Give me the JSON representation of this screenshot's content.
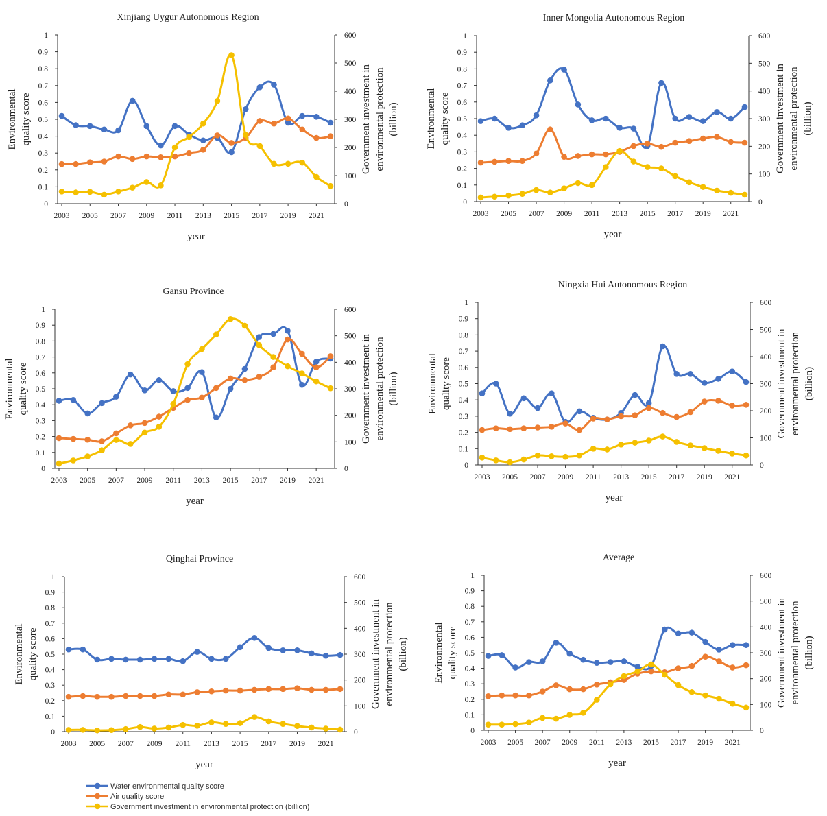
{
  "chart_data": [
    {
      "type": "line",
      "title": "Xinjiang Uygur Autonomous Region",
      "xlabel": "year",
      "ylabel": [
        "Environmental",
        "quality score"
      ],
      "y2label": [
        "Government investment in",
        "environmental protection",
        "(billion)"
      ],
      "x": [
        2003,
        2004,
        2005,
        2006,
        2007,
        2008,
        2009,
        2010,
        2011,
        2012,
        2013,
        2014,
        2015,
        2016,
        2017,
        2018,
        2019,
        2020,
        2021,
        2022
      ],
      "xticks": [
        "2003",
        "2005",
        "2007",
        "2009",
        "2011",
        "2013",
        "2015",
        "2017",
        "2019",
        "2021"
      ],
      "ylim": [
        0,
        1
      ],
      "yticks": [
        "0",
        "0.1",
        "0.2",
        "0.3",
        "0.4",
        "0.5",
        "0.6",
        "0.7",
        "0.8",
        "0.9",
        "1"
      ],
      "y2lim": [
        0,
        600
      ],
      "y2ticks": [
        "0",
        "100",
        "200",
        "300",
        "400",
        "500",
        "600"
      ],
      "series": [
        {
          "name": "Water environmental quality score",
          "axis": "left",
          "color": "#4472c4",
          "values": [
            0.52,
            0.465,
            0.46,
            0.44,
            0.435,
            0.61,
            0.46,
            0.345,
            0.46,
            0.41,
            0.375,
            0.39,
            0.305,
            0.56,
            0.69,
            0.705,
            0.48,
            0.52,
            0.515,
            0.48
          ]
        },
        {
          "name": "Air quality score",
          "axis": "left",
          "color": "#ed7d31",
          "values": [
            0.235,
            0.235,
            0.245,
            0.25,
            0.28,
            0.265,
            0.28,
            0.275,
            0.28,
            0.3,
            0.32,
            0.405,
            0.36,
            0.39,
            0.49,
            0.475,
            0.505,
            0.44,
            0.39,
            0.4
          ]
        },
        {
          "name": "Government investment in environmental protection (billion)",
          "axis": "right",
          "color": "#f5c000",
          "values": [
            43,
            40,
            42,
            32,
            43,
            57,
            77,
            65,
            200,
            237,
            285,
            365,
            528,
            245,
            205,
            142,
            142,
            146,
            95,
            63
          ]
        }
      ]
    },
    {
      "type": "line",
      "title": "Inner Mongolia Autonomous Region",
      "xlabel": "year",
      "ylabel": [
        "Environmental",
        "quality score"
      ],
      "y2label": [
        "Government investment in",
        "environmental protection",
        "(billion)"
      ],
      "x": [
        2003,
        2004,
        2005,
        2006,
        2007,
        2008,
        2009,
        2010,
        2011,
        2012,
        2013,
        2014,
        2015,
        2016,
        2017,
        2018,
        2019,
        2020,
        2021,
        2022
      ],
      "xticks": [
        "2003",
        "2005",
        "2007",
        "2009",
        "2011",
        "2013",
        "2015",
        "2017",
        "2019",
        "2021"
      ],
      "ylim": [
        0,
        1
      ],
      "yticks": [
        "0",
        "0.1",
        "0.2",
        "0.3",
        "0.4",
        "0.5",
        "0.6",
        "0.7",
        "0.8",
        "0.9",
        "1"
      ],
      "y2lim": [
        0,
        600
      ],
      "y2ticks": [
        "0",
        "100",
        "200",
        "300",
        "400",
        "500",
        "600"
      ],
      "series": [
        {
          "name": "Water environmental quality score",
          "axis": "left",
          "color": "#4472c4",
          "values": [
            0.485,
            0.5,
            0.445,
            0.46,
            0.52,
            0.73,
            0.795,
            0.585,
            0.49,
            0.5,
            0.445,
            0.44,
            0.335,
            0.715,
            0.5,
            0.51,
            0.485,
            0.54,
            0.5,
            0.57
          ]
        },
        {
          "name": "Air quality score",
          "axis": "left",
          "color": "#ed7d31",
          "values": [
            0.235,
            0.24,
            0.245,
            0.245,
            0.29,
            0.435,
            0.27,
            0.275,
            0.285,
            0.285,
            0.3,
            0.335,
            0.35,
            0.33,
            0.355,
            0.365,
            0.38,
            0.39,
            0.36,
            0.355
          ]
        },
        {
          "name": "Government investment in environmental protection (billion)",
          "axis": "right",
          "color": "#f5c000",
          "values": [
            15,
            18,
            22,
            28,
            42,
            33,
            48,
            67,
            60,
            125,
            183,
            145,
            125,
            120,
            92,
            70,
            53,
            40,
            32,
            25
          ]
        }
      ]
    },
    {
      "type": "line",
      "title": "Gansu Province",
      "xlabel": "year",
      "ylabel": [
        "Environmental",
        "quality score"
      ],
      "y2label": [
        "Government investment in",
        "environmental protection",
        "(billion)"
      ],
      "x": [
        2003,
        2004,
        2005,
        2006,
        2007,
        2008,
        2009,
        2010,
        2011,
        2012,
        2013,
        2014,
        2015,
        2016,
        2017,
        2018,
        2019,
        2020,
        2021,
        2022
      ],
      "xticks": [
        "2003",
        "2005",
        "2007",
        "2009",
        "2011",
        "2013",
        "2015",
        "2017",
        "2019",
        "2021"
      ],
      "ylim": [
        0,
        1
      ],
      "yticks": [
        "0",
        "0.1",
        "0.2",
        "0.3",
        "0.4",
        "0.5",
        "0.6",
        "0.7",
        "0.8",
        "0.9",
        "1"
      ],
      "y2lim": [
        0,
        600
      ],
      "y2ticks": [
        "0",
        "100",
        "200",
        "300",
        "400",
        "500",
        "600"
      ],
      "series": [
        {
          "name": "Water environmental quality score",
          "axis": "left",
          "color": "#4472c4",
          "values": [
            0.425,
            0.43,
            0.345,
            0.41,
            0.45,
            0.59,
            0.49,
            0.555,
            0.485,
            0.505,
            0.605,
            0.32,
            0.5,
            0.625,
            0.825,
            0.845,
            0.865,
            0.525,
            0.67,
            0.69
          ]
        },
        {
          "name": "Air quality score",
          "axis": "left",
          "color": "#ed7d31",
          "values": [
            0.19,
            0.185,
            0.18,
            0.17,
            0.22,
            0.27,
            0.285,
            0.325,
            0.38,
            0.43,
            0.445,
            0.505,
            0.565,
            0.555,
            0.575,
            0.635,
            0.81,
            0.72,
            0.635,
            0.705
          ]
        },
        {
          "name": "Government investment in environmental protection (billion)",
          "axis": "right",
          "color": "#f5c000",
          "values": [
            18,
            30,
            45,
            68,
            107,
            92,
            135,
            157,
            243,
            393,
            450,
            505,
            563,
            538,
            465,
            420,
            385,
            358,
            328,
            302
          ]
        }
      ]
    },
    {
      "type": "line",
      "title": "Ningxia Hui Autonomous Region",
      "xlabel": "year",
      "ylabel": [
        "Environmental",
        "quality score"
      ],
      "y2label": [
        "Government investment in",
        "environmental protection",
        "(billion)"
      ],
      "x": [
        2003,
        2004,
        2005,
        2006,
        2007,
        2008,
        2009,
        2010,
        2011,
        2012,
        2013,
        2014,
        2015,
        2016,
        2017,
        2018,
        2019,
        2020,
        2021,
        2022
      ],
      "xticks": [
        "2003",
        "2005",
        "2007",
        "2009",
        "2011",
        "2013",
        "2015",
        "2017",
        "2019",
        "2021"
      ],
      "ylim": [
        0,
        1
      ],
      "yticks": [
        "0",
        "0.1",
        "0.2",
        "0.3",
        "0.4",
        "0.5",
        "0.6",
        "0.7",
        "0.8",
        "0.9",
        "1"
      ],
      "y2lim": [
        0,
        600
      ],
      "y2ticks": [
        "0",
        "100",
        "200",
        "300",
        "400",
        "500",
        "600"
      ],
      "series": [
        {
          "name": "Water environmental quality score",
          "axis": "left",
          "color": "#4472c4",
          "values": [
            0.44,
            0.5,
            0.315,
            0.41,
            0.35,
            0.44,
            0.265,
            0.33,
            0.29,
            0.28,
            0.32,
            0.43,
            0.38,
            0.73,
            0.56,
            0.56,
            0.505,
            0.53,
            0.575,
            0.51
          ]
        },
        {
          "name": "Air quality score",
          "axis": "left",
          "color": "#ed7d31",
          "values": [
            0.215,
            0.225,
            0.22,
            0.225,
            0.23,
            0.235,
            0.255,
            0.215,
            0.285,
            0.28,
            0.3,
            0.305,
            0.35,
            0.32,
            0.295,
            0.325,
            0.39,
            0.395,
            0.365,
            0.37
          ]
        },
        {
          "name": "Government investment in environmental protection (billion)",
          "axis": "right",
          "color": "#f5c000",
          "values": [
            27,
            17,
            10,
            20,
            35,
            32,
            30,
            35,
            60,
            57,
            75,
            82,
            90,
            105,
            85,
            72,
            62,
            52,
            42,
            35
          ]
        }
      ]
    },
    {
      "type": "line",
      "title": "Qinghai Province",
      "xlabel": "year",
      "ylabel": [
        "Environmental",
        "quality score"
      ],
      "y2label": [
        "Government investment in",
        "environmental protection",
        "(billion)"
      ],
      "x": [
        2003,
        2004,
        2005,
        2006,
        2007,
        2008,
        2009,
        2010,
        2011,
        2012,
        2013,
        2014,
        2015,
        2016,
        2017,
        2018,
        2019,
        2020,
        2021,
        2022
      ],
      "xticks": [
        "2003",
        "2005",
        "2007",
        "2009",
        "2011",
        "2013",
        "2015",
        "2017",
        "2019",
        "2021"
      ],
      "ylim": [
        0,
        1
      ],
      "yticks": [
        "0",
        "0.1",
        "0.2",
        "0.3",
        "0.4",
        "0.5",
        "0.6",
        "0.7",
        "0.8",
        "0.9",
        "1"
      ],
      "y2lim": [
        0,
        600
      ],
      "y2ticks": [
        "0",
        "100",
        "200",
        "300",
        "400",
        "500",
        "600"
      ],
      "series": [
        {
          "name": "Water environmental quality score",
          "axis": "left",
          "color": "#4472c4",
          "values": [
            0.53,
            0.53,
            0.465,
            0.47,
            0.465,
            0.465,
            0.47,
            0.47,
            0.455,
            0.515,
            0.47,
            0.47,
            0.545,
            0.605,
            0.54,
            0.525,
            0.525,
            0.505,
            0.49,
            0.495
          ]
        },
        {
          "name": "Air quality score",
          "axis": "left",
          "color": "#ed7d31",
          "values": [
            0.225,
            0.23,
            0.225,
            0.225,
            0.23,
            0.23,
            0.23,
            0.24,
            0.24,
            0.255,
            0.26,
            0.265,
            0.265,
            0.27,
            0.275,
            0.275,
            0.28,
            0.27,
            0.27,
            0.275
          ]
        },
        {
          "name": "Government investment in environmental protection (billion)",
          "axis": "right",
          "color": "#f5c000",
          "values": [
            7,
            7,
            5,
            6,
            10,
            18,
            12,
            16,
            26,
            23,
            36,
            30,
            33,
            57,
            40,
            30,
            22,
            16,
            12,
            8
          ]
        }
      ]
    },
    {
      "type": "line",
      "title": "Average",
      "xlabel": "year",
      "ylabel": [
        "Environmental",
        "quality score"
      ],
      "y2label": [
        "Government investment in",
        "environmental protection",
        "(billion)"
      ],
      "x": [
        2003,
        2004,
        2005,
        2006,
        2007,
        2008,
        2009,
        2010,
        2011,
        2012,
        2013,
        2014,
        2015,
        2016,
        2017,
        2018,
        2019,
        2020,
        2021,
        2022
      ],
      "xticks": [
        "2003",
        "2005",
        "2007",
        "2009",
        "2011",
        "2013",
        "2015",
        "2017",
        "2019",
        "2021"
      ],
      "ylim": [
        0,
        1
      ],
      "yticks": [
        "0",
        "0.1",
        "0.2",
        "0.3",
        "0.4",
        "0.5",
        "0.6",
        "0.7",
        "0.8",
        "0.9",
        "1"
      ],
      "y2lim": [
        0,
        600
      ],
      "y2ticks": [
        "0",
        "100",
        "200",
        "300",
        "400",
        "500",
        "600"
      ],
      "series": [
        {
          "name": "Water environmental quality score",
          "axis": "left",
          "color": "#4472c4",
          "values": [
            0.48,
            0.485,
            0.405,
            0.44,
            0.445,
            0.565,
            0.495,
            0.455,
            0.435,
            0.44,
            0.445,
            0.41,
            0.415,
            0.65,
            0.625,
            0.63,
            0.57,
            0.52,
            0.55,
            0.55
          ]
        },
        {
          "name": "Air quality score",
          "axis": "left",
          "color": "#ed7d31",
          "values": [
            0.22,
            0.225,
            0.225,
            0.225,
            0.25,
            0.29,
            0.265,
            0.265,
            0.295,
            0.31,
            0.325,
            0.365,
            0.38,
            0.375,
            0.4,
            0.415,
            0.475,
            0.445,
            0.405,
            0.42
          ]
        },
        {
          "name": "Government investment in environmental protection (billion)",
          "axis": "right",
          "color": "#f5c000",
          "values": [
            22,
            22,
            24,
            30,
            48,
            45,
            60,
            68,
            118,
            178,
            210,
            228,
            255,
            215,
            175,
            148,
            135,
            122,
            103,
            88
          ]
        }
      ]
    }
  ],
  "legend": {
    "items": [
      {
        "label": "Water environmental quality score",
        "color": "#4472c4"
      },
      {
        "label": "Air quality score",
        "color": "#ed7d31"
      },
      {
        "label": "Government investment in environmental protection (billion)",
        "color": "#f5c000"
      }
    ]
  }
}
